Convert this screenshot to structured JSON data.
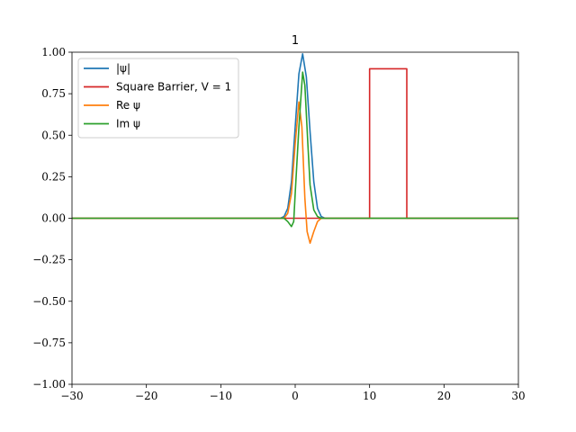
{
  "chart_data": {
    "type": "line",
    "title": "1",
    "xlabel": "",
    "ylabel": "",
    "xlim": [
      -30,
      30
    ],
    "ylim": [
      -1.0,
      1.0
    ],
    "xticks": [
      -30,
      -20,
      -10,
      0,
      10,
      20,
      30
    ],
    "xtick_labels": [
      "−30",
      "−20",
      "−10",
      "0",
      "10",
      "20",
      "30"
    ],
    "yticks": [
      -1.0,
      -0.75,
      -0.5,
      -0.25,
      0.0,
      0.25,
      0.5,
      0.75,
      1.0
    ],
    "ytick_labels": [
      "−1.00",
      "−0.75",
      "−0.50",
      "−0.25",
      "0.00",
      "0.25",
      "0.50",
      "0.75",
      "1.00"
    ],
    "grid": false,
    "legend_position": "top-left",
    "series": [
      {
        "name": "|ψ|",
        "color": "#1f77b4",
        "x": [
          -30,
          -2,
          -1.5,
          -1,
          -0.5,
          0,
          0.5,
          1,
          1.5,
          2,
          2.5,
          3,
          3.5,
          4,
          30
        ],
        "y": [
          0,
          0,
          0.01,
          0.06,
          0.22,
          0.55,
          0.87,
          0.99,
          0.85,
          0.52,
          0.22,
          0.06,
          0.01,
          0,
          0
        ]
      },
      {
        "name": "Square Barrier, V = 1",
        "color": "#d62728",
        "x": [
          -30,
          10,
          10,
          15,
          15,
          30
        ],
        "y": [
          0,
          0,
          0.9,
          0.9,
          0,
          0
        ]
      },
      {
        "name": "Re ψ",
        "color": "#ff7f0e",
        "x": [
          -30,
          -1.5,
          -1,
          -0.5,
          0,
          0.5,
          0.9,
          1.3,
          1.6,
          2,
          2.5,
          3,
          3.5,
          4,
          30
        ],
        "y": [
          0,
          0,
          0.03,
          0.15,
          0.45,
          0.7,
          0.55,
          0.12,
          -0.08,
          -0.15,
          -0.08,
          -0.02,
          0,
          0,
          0
        ]
      },
      {
        "name": "Im ψ",
        "color": "#2ca02c",
        "x": [
          -30,
          -1.5,
          -1,
          -0.5,
          -0.2,
          0,
          0.5,
          1,
          1.3,
          1.7,
          2,
          2.5,
          3,
          3.5,
          30
        ],
        "y": [
          0,
          0,
          -0.02,
          -0.05,
          -0.02,
          0.15,
          0.55,
          0.88,
          0.8,
          0.45,
          0.2,
          0.05,
          0.01,
          0,
          0
        ]
      }
    ]
  }
}
